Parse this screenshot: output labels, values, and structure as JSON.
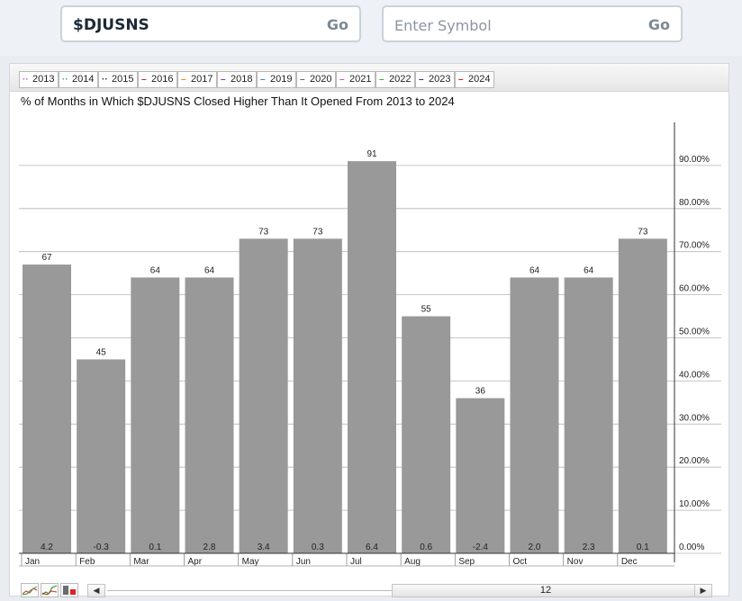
{
  "search": {
    "value": "$DJUSNS",
    "go_label": "Go"
  },
  "search2": {
    "placeholder": "Enter Symbol",
    "go_label": "Go"
  },
  "legend": [
    {
      "label": "2013",
      "color": "#d24dd8",
      "style": "dot"
    },
    {
      "label": "2014",
      "color": "#45b545",
      "style": "dot"
    },
    {
      "label": "2015",
      "color": "#333366",
      "style": "dot"
    },
    {
      "label": "2016",
      "color": "#cc1f1f",
      "style": "dash"
    },
    {
      "label": "2017",
      "color": "#f08a0a",
      "style": "dash"
    },
    {
      "label": "2018",
      "color": "#8a2be2",
      "style": "dash"
    },
    {
      "label": "2019",
      "color": "#1e90c8",
      "style": "dash"
    },
    {
      "label": "2020",
      "color": "#666666",
      "style": "dash"
    },
    {
      "label": "2021",
      "color": "#d24dd8",
      "style": "dash"
    },
    {
      "label": "2022",
      "color": "#2db52d",
      "style": "dash"
    },
    {
      "label": "2023",
      "color": "#3b2a8a",
      "style": "dash"
    },
    {
      "label": "2024",
      "color": "#cc1f1f",
      "style": "dash"
    }
  ],
  "icons": {
    "prev": "left-arrow-icon",
    "next": "right-arrow-icon"
  },
  "scroller": {
    "value": "12"
  },
  "chart_data": {
    "type": "bar",
    "title": "% of Months in Which $DJUSNS Closed Higher Than It Opened From 2013 to 2024",
    "categories": [
      "Jan",
      "Feb",
      "Mar",
      "Apr",
      "May",
      "Jun",
      "Jul",
      "Aug",
      "Sep",
      "Oct",
      "Nov",
      "Dec"
    ],
    "values": [
      67,
      45,
      64,
      64,
      73,
      73,
      91,
      55,
      36,
      64,
      64,
      73
    ],
    "avg_returns": [
      "4.2",
      "-0.3",
      "0.1",
      "2.8",
      "3.4",
      "0.3",
      "6.4",
      "0.6",
      "-2.4",
      "2.0",
      "2.3",
      "0.1"
    ],
    "y_ticks": [
      "0.00%",
      "10.00%",
      "20.00%",
      "30.00%",
      "40.00%",
      "50.00%",
      "60.00%",
      "70.00%",
      "80.00%",
      "90.00%"
    ],
    "ylim": [
      0,
      100
    ],
    "bar_color": "#999999",
    "grid": true,
    "y_axis_position": "right"
  }
}
